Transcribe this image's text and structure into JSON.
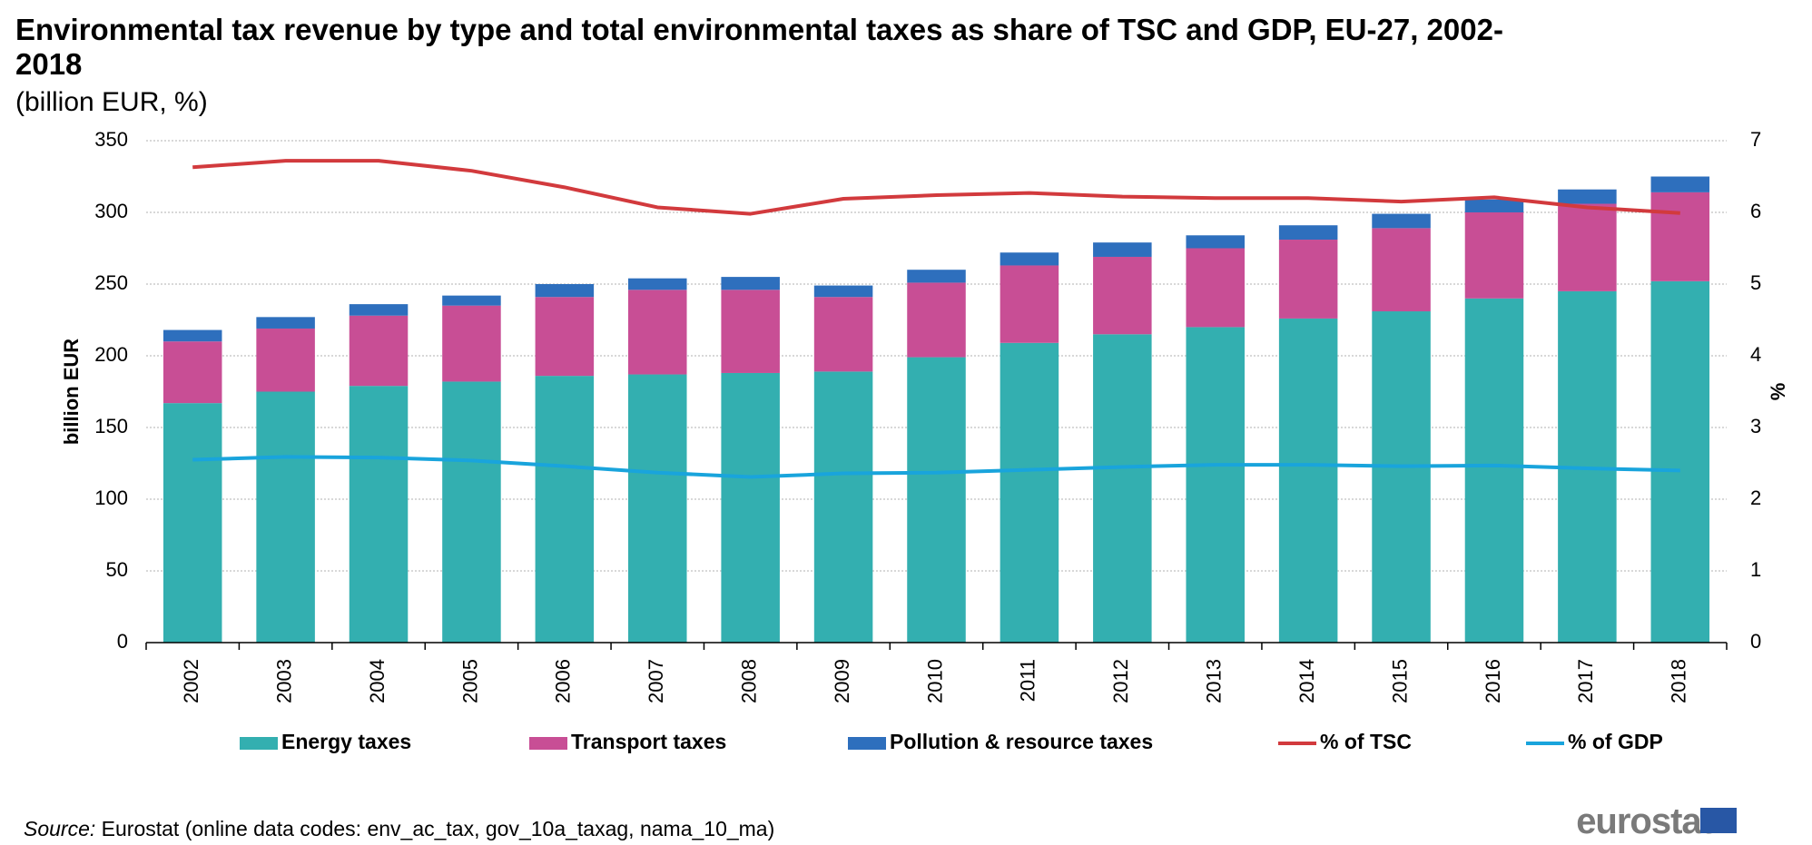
{
  "chart_data": {
    "type": "bar",
    "stacked": true,
    "title": "Environmental tax revenue by type and total environmental taxes as share of TSC and GDP, EU-27, 2002-2018",
    "subtitle": "(billion EUR, %)",
    "ylabel": "billion EUR",
    "y2label": "%",
    "categories": [
      "2002",
      "2003",
      "2004",
      "2005",
      "2006",
      "2007",
      "2008",
      "2009",
      "2010",
      "2011",
      "2012",
      "2013",
      "2014",
      "2015",
      "2016",
      "2017",
      "2018"
    ],
    "series": [
      {
        "name": "Energy taxes",
        "type": "bar",
        "color": "#33afb0",
        "values": [
          167,
          175,
          179,
          182,
          186,
          187,
          188,
          189,
          199,
          209,
          215,
          220,
          226,
          231,
          240,
          245,
          252
        ]
      },
      {
        "name": "Transport taxes",
        "type": "bar",
        "color": "#c84e95",
        "values": [
          43,
          44,
          49,
          53,
          55,
          59,
          58,
          52,
          52,
          54,
          54,
          55,
          55,
          58,
          60,
          61,
          62
        ]
      },
      {
        "name": "Pollution & resource taxes",
        "type": "bar",
        "color": "#2e6fbd",
        "values": [
          8,
          8,
          8,
          7,
          9,
          8,
          9,
          8,
          9,
          9,
          10,
          9,
          10,
          10,
          9,
          10,
          11
        ]
      },
      {
        "name": "% of TSC",
        "type": "line",
        "axis": "y2",
        "color": "#d23a3d",
        "values": [
          6.63,
          6.72,
          6.72,
          6.58,
          6.35,
          6.07,
          5.98,
          6.19,
          6.24,
          6.27,
          6.22,
          6.2,
          6.2,
          6.15,
          6.21,
          6.07,
          5.99
        ]
      },
      {
        "name": "% of GDP",
        "type": "line",
        "axis": "y2",
        "color": "#19a4dc",
        "values": [
          2.55,
          2.59,
          2.58,
          2.54,
          2.46,
          2.37,
          2.31,
          2.36,
          2.37,
          2.41,
          2.45,
          2.48,
          2.48,
          2.46,
          2.47,
          2.43,
          2.4
        ]
      }
    ],
    "ylim": [
      0,
      350
    ],
    "yticks": [
      0,
      50,
      100,
      150,
      200,
      250,
      300,
      350
    ],
    "y2lim": [
      0,
      7
    ],
    "y2ticks": [
      0,
      1,
      2,
      3,
      4,
      5,
      6,
      7
    ],
    "grid": true,
    "legend": "bottom"
  },
  "footer": {
    "source_label": "Source:",
    "source": "Eurostat (online data codes: env_ac_tax, gov_10a_taxag, nama_10_ma)",
    "logo": "eurostat"
  }
}
